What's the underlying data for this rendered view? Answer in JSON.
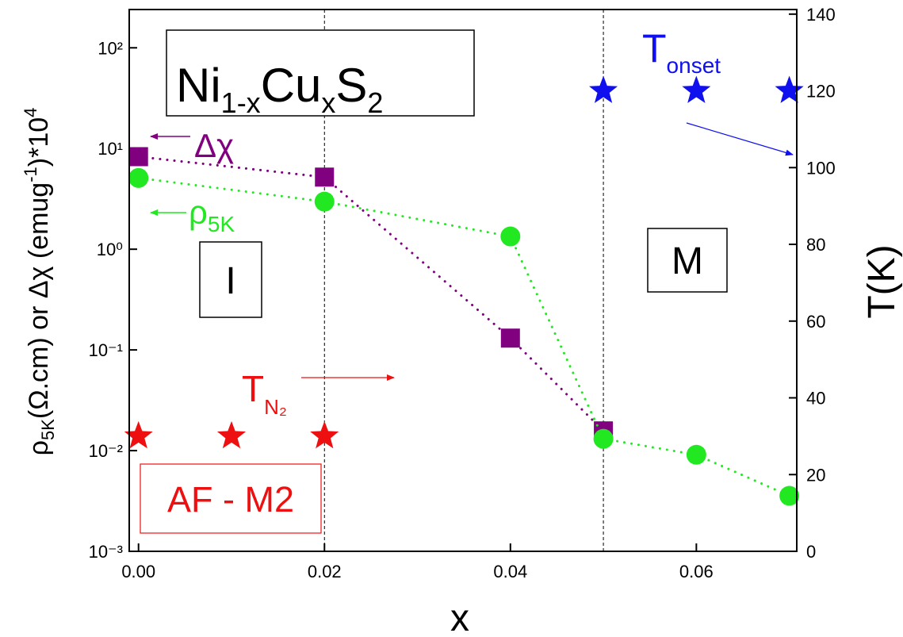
{
  "chart_data": {
    "type": "line",
    "x_label": "x",
    "y_label_parts": [
      "ρ",
      "5K",
      "(Ω.cm) or Δχ (emug",
      "-1",
      ")*10",
      "4"
    ],
    "y2_label": "T(K)",
    "xlim": [
      -0.001,
      0.0708
    ],
    "xticks": [
      {
        "value": 0,
        "label": "0.00"
      },
      {
        "value": 0.02,
        "label": "0.02"
      },
      {
        "value": 0.04,
        "label": "0.04"
      },
      {
        "value": 0.06,
        "label": "0.06"
      }
    ],
    "ylim": [
      0.001,
      240
    ],
    "yscale": "log",
    "yticks": [
      {
        "value": 0.001,
        "label": "10⁻³"
      },
      {
        "value": 0.01,
        "label": "10⁻²"
      },
      {
        "value": 0.1,
        "label": "10⁻¹"
      },
      {
        "value": 1,
        "label": "10⁰"
      },
      {
        "value": 10,
        "label": "10¹"
      },
      {
        "value": 100,
        "label": "10²"
      }
    ],
    "y2lim": [
      0,
      141.2
    ],
    "y2ticks": [
      0,
      20,
      40,
      60,
      80,
      100,
      120,
      140
    ],
    "vlines": [
      0.02,
      0.05
    ],
    "series": [
      {
        "color": "#800080",
        "marker": "square",
        "line": "dotted",
        "axis": "y",
        "x": [
          0,
          0.02,
          0.04,
          0.05
        ],
        "values": [
          8.3,
          5.2,
          0.131,
          0.0157
        ]
      },
      {
        "color": "#22e822",
        "marker": "circle",
        "line": "dotted",
        "axis": "y",
        "x": [
          0,
          0.02,
          0.04,
          0.05,
          0.06,
          0.07
        ],
        "values": [
          5.1,
          2.97,
          1.34,
          0.0131,
          0.0091,
          0.00356
        ]
      },
      {
        "color": "#1010ee",
        "marker": "star",
        "line": "none",
        "axis": "y2",
        "x": [
          0.05,
          0.06,
          0.07
        ],
        "values": [
          120,
          120,
          120
        ]
      },
      {
        "color": "#ee1010",
        "marker": "star",
        "line": "none",
        "axis": "y2",
        "x": [
          0,
          0.01,
          0.02
        ],
        "values": [
          30,
          30,
          30
        ]
      }
    ],
    "annotations": {
      "formula": [
        "Ni",
        "1-x",
        "Cu",
        "x",
        "S",
        "2"
      ],
      "delta_chi": "Δχ",
      "rho_5k": [
        "ρ",
        "5K"
      ],
      "t_onset": [
        "T",
        "onset"
      ],
      "t_n2": [
        "T",
        "N₂"
      ],
      "region_i": "I",
      "region_m": "M",
      "af_m2": "AF - M2"
    }
  }
}
